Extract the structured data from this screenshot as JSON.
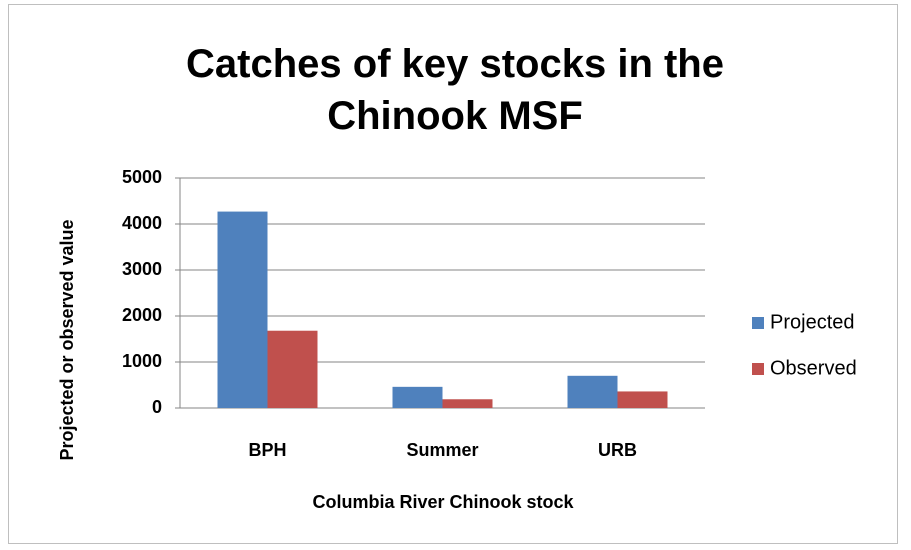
{
  "chart_data": {
    "type": "bar",
    "title": "Catches of key stocks in the Chinook MSF",
    "x_label": "Columbia River Chinook stock",
    "y_label": "Projected or observed value",
    "categories": [
      "BPH",
      "Summer",
      "URB"
    ],
    "series": [
      {
        "name": "Projected",
        "color": "#4f81bd",
        "values": [
          4270,
          460,
          700
        ]
      },
      {
        "name": "Observed",
        "color": "#c0504d",
        "values": [
          1680,
          190,
          360
        ]
      }
    ],
    "ylim": [
      0,
      5000
    ],
    "yticks": [
      0,
      1000,
      2000,
      3000,
      4000,
      5000
    ],
    "grid": true,
    "legend": "right"
  }
}
